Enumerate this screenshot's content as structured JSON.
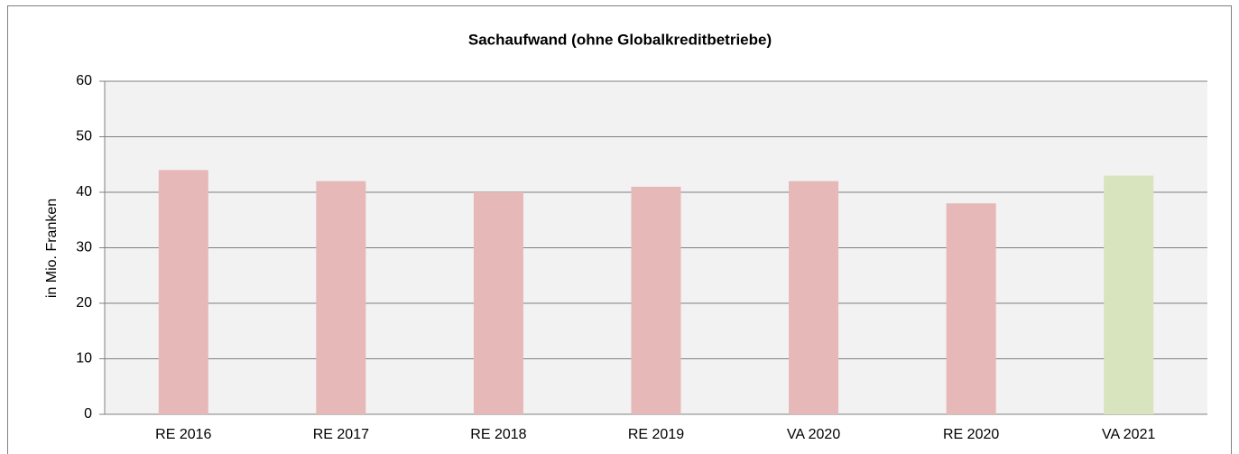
{
  "chart_data": {
    "type": "bar",
    "title": "Sachaufwand (ohne Globalkreditbetriebe)",
    "ylabel": "in Mio. Franken",
    "categories": [
      "RE 2016",
      "RE 2017",
      "RE 2018",
      "RE 2019",
      "VA 2020",
      "RE 2020",
      "VA 2021"
    ],
    "values": [
      44,
      42,
      40,
      41,
      42,
      38,
      43
    ],
    "colors": [
      "#e6b8b7",
      "#e6b8b7",
      "#e6b8b7",
      "#e6b8b7",
      "#e6b8b7",
      "#e6b8b7",
      "#d7e4bd"
    ],
    "ylim": [
      0,
      60
    ],
    "yticks": [
      0,
      10,
      20,
      30,
      40,
      50,
      60
    ],
    "grid": true
  }
}
